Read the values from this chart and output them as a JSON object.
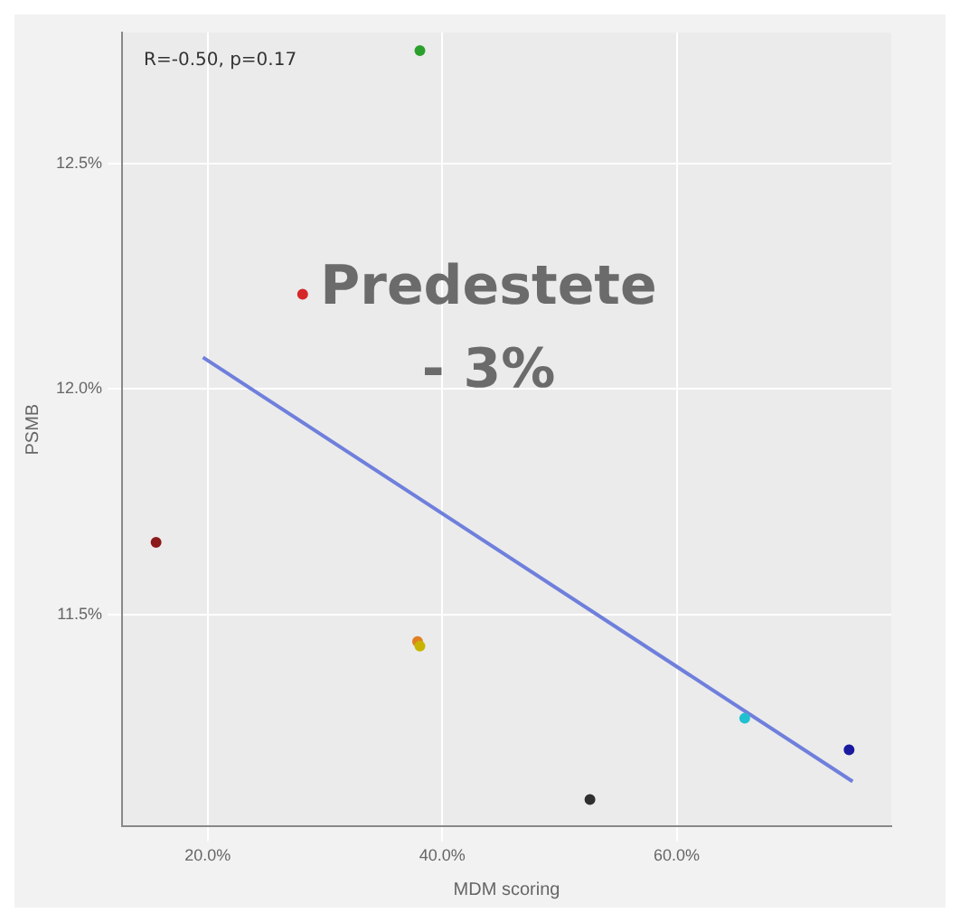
{
  "chart_data": {
    "type": "scatter",
    "xlabel": "MDM scoring",
    "ylabel": "PSMB",
    "annotations": [
      "R=-0.50, p=0.17",
      "Predestete",
      "- 3%"
    ],
    "series": [
      {
        "marker": "circle",
        "colors": [
          "#2ca02c",
          "#d62728",
          "#8b1a1a",
          "#e08020",
          "#c8b400",
          "#303030",
          "#20c0d0",
          "#1a1aa0"
        ],
        "x": [
          38.1,
          28.1,
          15.6,
          37.9,
          38.1,
          52.6,
          65.8,
          74.7
        ],
        "values": [
          12.75,
          12.21,
          11.66,
          11.44,
          11.43,
          11.09,
          11.27,
          11.2
        ]
      },
      {
        "type": "line",
        "color": "#6f7fdc",
        "x": [
          19.6,
          75.0
        ],
        "values": [
          12.07,
          11.13
        ]
      }
    ],
    "xlim": [
      12.7,
      78.3
    ],
    "ylim": [
      11.03,
      12.79
    ],
    "xticks": [
      {
        "value": 20,
        "label": "20.0%"
      },
      {
        "value": 40,
        "label": "40.0%"
      },
      {
        "value": 60,
        "label": "60.0%"
      }
    ],
    "yticks": [
      {
        "value": 11.5,
        "label": "11.5%"
      },
      {
        "value": 12,
        "label": "12.0%"
      },
      {
        "value": 12.5,
        "label": "12.5%"
      }
    ],
    "grid": true,
    "line_style": "solid"
  }
}
